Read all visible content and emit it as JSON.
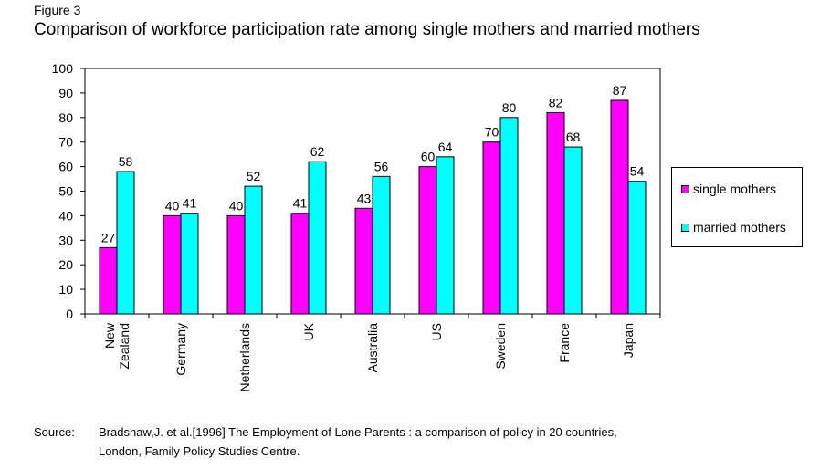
{
  "figure_label": "Figure 3",
  "colors": {
    "single": "#ff00ff",
    "married": "#00ffff",
    "stroke": "#000000"
  },
  "chart_data": {
    "type": "bar",
    "title": "Comparison of workforce participation rate among single mothers and married mothers",
    "categories": [
      [
        "New",
        "Zealand"
      ],
      [
        "Germany"
      ],
      [
        "Netherlands"
      ],
      [
        "UK"
      ],
      [
        "Australia"
      ],
      [
        "US"
      ],
      [
        "Sweden"
      ],
      [
        "France"
      ],
      [
        "Japan"
      ]
    ],
    "series": [
      {
        "name": "single mothers",
        "values": [
          27,
          40,
          40,
          41,
          43,
          60,
          70,
          82,
          87
        ]
      },
      {
        "name": "married mothers",
        "values": [
          58,
          41,
          52,
          62,
          56,
          64,
          80,
          68,
          54
        ]
      }
    ],
    "ylim": [
      0,
      100
    ],
    "yticks": [
      0,
      10,
      20,
      30,
      40,
      50,
      60,
      70,
      80,
      90,
      100
    ],
    "xlabel": "",
    "ylabel": "",
    "grid": false,
    "legend_position": "right"
  },
  "source": {
    "label": "Source:",
    "line1": "Bradshaw,J. et al.[1996] The Employment of Lone Parents : a comparison of policy in 20 countries,",
    "line2": "London, Family Policy Studies Centre."
  }
}
